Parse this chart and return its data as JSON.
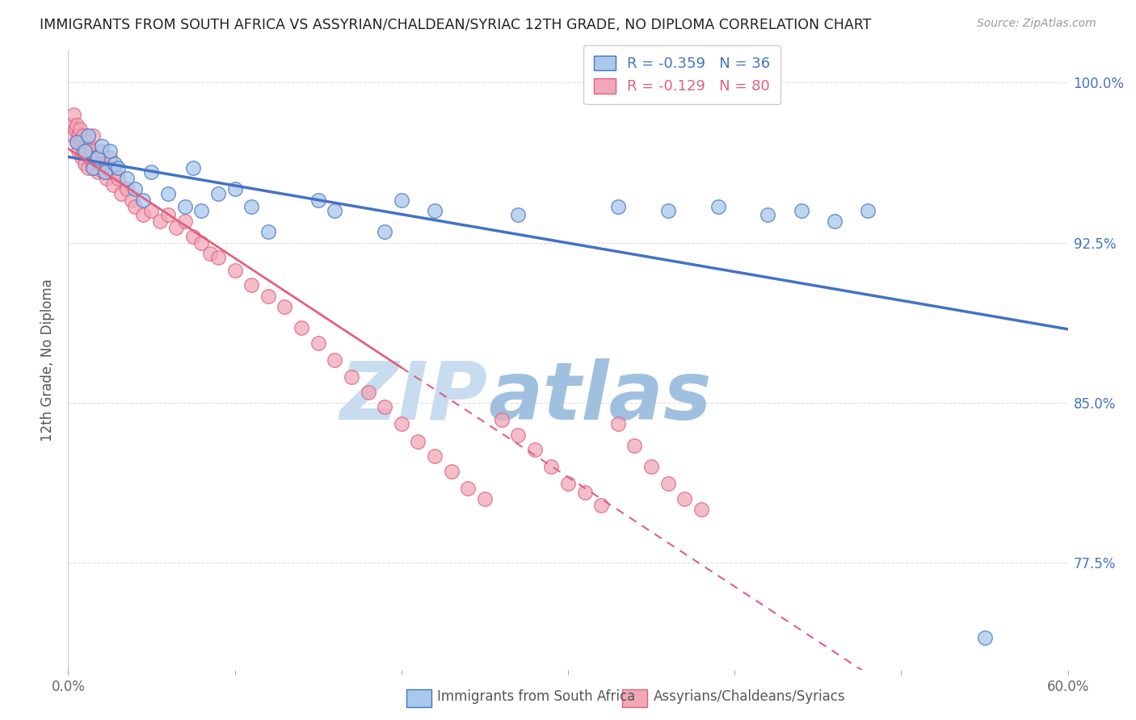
{
  "title": "IMMIGRANTS FROM SOUTH AFRICA VS ASSYRIAN/CHALDEAN/SYRIAC 12TH GRADE, NO DIPLOMA CORRELATION CHART",
  "source": "Source: ZipAtlas.com",
  "ylabel": "12th Grade, No Diploma",
  "xlim": [
    0.0,
    0.6
  ],
  "ylim": [
    0.725,
    1.015
  ],
  "xticks": [
    0.0,
    0.1,
    0.2,
    0.3,
    0.4,
    0.5,
    0.6
  ],
  "xtick_labels": [
    "0.0%",
    "",
    "",
    "",
    "",
    "",
    "60.0%"
  ],
  "ytick_positions": [
    0.775,
    0.85,
    0.925,
    1.0
  ],
  "ytick_labels": [
    "77.5%",
    "85.0%",
    "92.5%",
    "100.0%"
  ],
  "blue_R": -0.359,
  "blue_N": 36,
  "pink_R": -0.129,
  "pink_N": 80,
  "blue_color": "#A8C8EC",
  "pink_color": "#F0A8B8",
  "blue_line_color": "#4472C4",
  "pink_line_color": "#E06080",
  "watermark_zip": "ZIP",
  "watermark_atlas": "atlas",
  "watermark_color_zip": "#C8DCF0",
  "watermark_color_atlas": "#A0C0E0",
  "legend_label_blue": "Immigrants from South Africa",
  "legend_label_pink": "Assyrians/Chaldeans/Syriacs",
  "blue_scatter_x": [
    0.005,
    0.01,
    0.012,
    0.015,
    0.018,
    0.02,
    0.022,
    0.025,
    0.028,
    0.03,
    0.035,
    0.04,
    0.045,
    0.05,
    0.06,
    0.07,
    0.075,
    0.08,
    0.09,
    0.1,
    0.11,
    0.12,
    0.15,
    0.16,
    0.19,
    0.2,
    0.22,
    0.27,
    0.33,
    0.36,
    0.39,
    0.42,
    0.44,
    0.46,
    0.48,
    0.55
  ],
  "blue_scatter_y": [
    0.972,
    0.968,
    0.975,
    0.96,
    0.965,
    0.97,
    0.958,
    0.968,
    0.962,
    0.96,
    0.955,
    0.95,
    0.945,
    0.958,
    0.948,
    0.942,
    0.96,
    0.94,
    0.948,
    0.95,
    0.942,
    0.93,
    0.945,
    0.94,
    0.93,
    0.945,
    0.94,
    0.938,
    0.942,
    0.94,
    0.942,
    0.938,
    0.94,
    0.935,
    0.94,
    0.74
  ],
  "pink_scatter_x": [
    0.002,
    0.003,
    0.003,
    0.004,
    0.005,
    0.005,
    0.006,
    0.006,
    0.007,
    0.007,
    0.008,
    0.008,
    0.009,
    0.009,
    0.01,
    0.01,
    0.011,
    0.012,
    0.012,
    0.013,
    0.014,
    0.015,
    0.015,
    0.016,
    0.017,
    0.018,
    0.019,
    0.02,
    0.021,
    0.022,
    0.023,
    0.024,
    0.025,
    0.026,
    0.027,
    0.028,
    0.03,
    0.032,
    0.035,
    0.038,
    0.04,
    0.045,
    0.05,
    0.055,
    0.06,
    0.065,
    0.07,
    0.075,
    0.08,
    0.085,
    0.09,
    0.1,
    0.11,
    0.12,
    0.13,
    0.14,
    0.15,
    0.16,
    0.17,
    0.18,
    0.19,
    0.2,
    0.21,
    0.22,
    0.23,
    0.24,
    0.25,
    0.26,
    0.27,
    0.28,
    0.29,
    0.3,
    0.31,
    0.32,
    0.33,
    0.34,
    0.35,
    0.36,
    0.37,
    0.38
  ],
  "pink_scatter_y": [
    0.98,
    0.975,
    0.985,
    0.978,
    0.972,
    0.98,
    0.975,
    0.968,
    0.972,
    0.978,
    0.965,
    0.972,
    0.968,
    0.975,
    0.962,
    0.97,
    0.968,
    0.972,
    0.96,
    0.965,
    0.968,
    0.962,
    0.975,
    0.96,
    0.965,
    0.958,
    0.962,
    0.968,
    0.958,
    0.962,
    0.955,
    0.96,
    0.965,
    0.958,
    0.952,
    0.958,
    0.955,
    0.948,
    0.95,
    0.945,
    0.942,
    0.938,
    0.94,
    0.935,
    0.938,
    0.932,
    0.935,
    0.928,
    0.925,
    0.92,
    0.918,
    0.912,
    0.905,
    0.9,
    0.895,
    0.885,
    0.878,
    0.87,
    0.862,
    0.855,
    0.848,
    0.84,
    0.832,
    0.825,
    0.818,
    0.81,
    0.805,
    0.842,
    0.835,
    0.828,
    0.82,
    0.812,
    0.808,
    0.802,
    0.84,
    0.83,
    0.82,
    0.812,
    0.805,
    0.8
  ]
}
